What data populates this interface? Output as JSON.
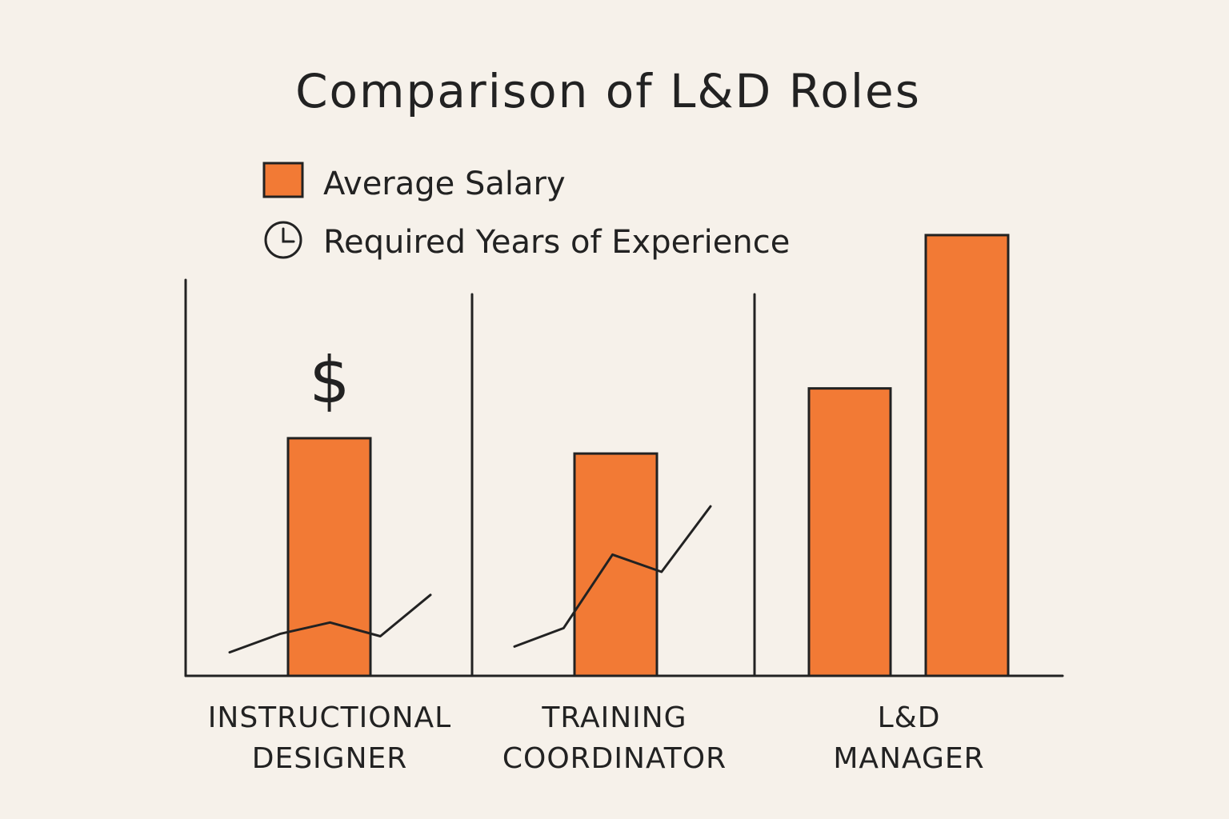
{
  "chart_data": {
    "type": "bar",
    "title": "Comparison of L&D Roles",
    "legend": {
      "placement": "top-left",
      "items": [
        {
          "label": "Average Salary",
          "marker": "square",
          "color": "#f27a35"
        },
        {
          "label": "Required Years of Experience",
          "marker": "clock-icon",
          "color": "#222222"
        }
      ]
    },
    "categories": [
      [
        "INSTRUCTIONAL",
        "DESIGNER"
      ],
      [
        "TRAINING",
        "COORDINATOR"
      ],
      [
        "L&D",
        "MANAGER"
      ]
    ],
    "series": [
      {
        "name": "Average Salary",
        "values": [
          [
            62
          ],
          [
            58
          ],
          [
            75,
            115
          ]
        ]
      },
      {
        "name": "Required Years of Experience",
        "type": "line",
        "values": [
          [
            1,
            2.6,
            3.6,
            2.4,
            6
          ],
          [
            1.5,
            3.1,
            9.5,
            8,
            13.7
          ]
        ]
      }
    ],
    "annotations": [
      "$"
    ],
    "ylim": [
      0,
      120
    ],
    "xlabel": "",
    "ylabel": "",
    "grid": false,
    "colors": {
      "bar_fill": "#f27a35",
      "outline": "#222222",
      "background": "#f6f1ea"
    }
  }
}
